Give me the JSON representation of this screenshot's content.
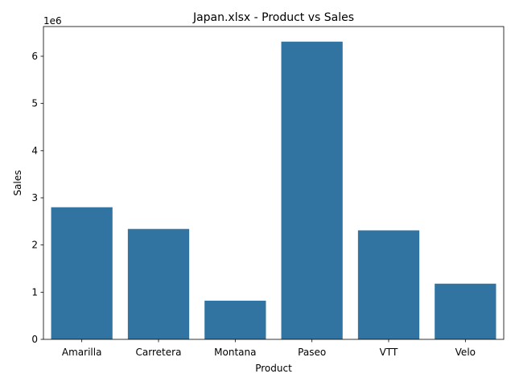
{
  "chart_data": {
    "type": "bar",
    "title": "Japan.xlsx - Product vs Sales",
    "xlabel": "Product",
    "ylabel": "Sales",
    "y_offset_label": "1e6",
    "categories": [
      "Amarilla",
      "Carretera",
      "Montana",
      "Paseo",
      "VTT",
      "Velo"
    ],
    "values": [
      2.8,
      2.34,
      0.82,
      6.31,
      2.31,
      1.18
    ],
    "value_scale": 1000000,
    "yticks": [
      0,
      1,
      2,
      3,
      4,
      5,
      6
    ],
    "ylim": [
      0,
      6.63
    ],
    "grid": false,
    "bar_color": "#3274a1"
  }
}
